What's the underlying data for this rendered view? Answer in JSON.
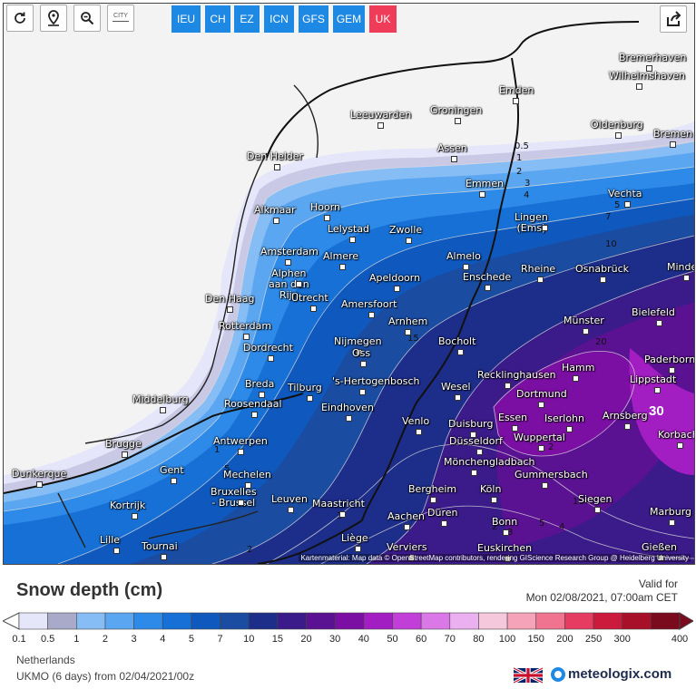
{
  "toolbar": {
    "city_label": "CITY",
    "models": [
      {
        "label": "IEU",
        "active": false
      },
      {
        "label": "CH",
        "active": false
      },
      {
        "label": "EZ",
        "active": false
      },
      {
        "label": "ICN",
        "active": false
      },
      {
        "label": "GFS",
        "active": false
      },
      {
        "label": "GEM",
        "active": false
      },
      {
        "label": "UK",
        "active": true
      }
    ],
    "colors": {
      "model_bg": "#1e88e5",
      "model_active_bg": "#ef3d59"
    }
  },
  "map": {
    "cities": [
      {
        "name": "Bremerhaven"
      },
      {
        "name": "Wilhelmshaven"
      },
      {
        "name": "Emden"
      },
      {
        "name": "Leeuwarden"
      },
      {
        "name": "Groningen"
      },
      {
        "name": "Oldenburg"
      },
      {
        "name": "Bremen"
      },
      {
        "name": "Den Helder"
      },
      {
        "name": "Assen"
      },
      {
        "name": "Emmen"
      },
      {
        "name": "Vechta"
      },
      {
        "name": "Alkmaar"
      },
      {
        "name": "Hoorn"
      },
      {
        "name": "Lelystad"
      },
      {
        "name": "Zwolle"
      },
      {
        "name": "Lingen\n(Ems)"
      },
      {
        "name": "Amsterdam"
      },
      {
        "name": "Almere"
      },
      {
        "name": "Almelo"
      },
      {
        "name": "Alphen\naan den\nRijn"
      },
      {
        "name": "Apeldoorn"
      },
      {
        "name": "Enschede"
      },
      {
        "name": "Rheine"
      },
      {
        "name": "Osnabrück"
      },
      {
        "name": "Minden"
      },
      {
        "name": "Den Haag"
      },
      {
        "name": "Utrecht"
      },
      {
        "name": "Amersfoort"
      },
      {
        "name": "Bielefeld"
      },
      {
        "name": "Rotterdam"
      },
      {
        "name": "Arnhem"
      },
      {
        "name": "Münster"
      },
      {
        "name": "Dordrecht"
      },
      {
        "name": "Nijmegen"
      },
      {
        "name": "Oss"
      },
      {
        "name": "Bocholt"
      },
      {
        "name": "Paderborn"
      },
      {
        "name": "Breda"
      },
      {
        "name": "Tilburg"
      },
      {
        "name": "'s-Hertogenbosch"
      },
      {
        "name": "Recklinghausen"
      },
      {
        "name": "Hamm"
      },
      {
        "name": "Lippstadt"
      },
      {
        "name": "Wesel"
      },
      {
        "name": "Roosendaal"
      },
      {
        "name": "Middelburg"
      },
      {
        "name": "Eindhoven"
      },
      {
        "name": "Dortmund"
      },
      {
        "name": "Arnsberg"
      },
      {
        "name": "Venlo"
      },
      {
        "name": "Essen"
      },
      {
        "name": "Iserlohn"
      },
      {
        "name": "Duisburg"
      },
      {
        "name": "Korbach"
      },
      {
        "name": "Brugge"
      },
      {
        "name": "Antwerpen"
      },
      {
        "name": "Düsseldorf"
      },
      {
        "name": "Wuppertal"
      },
      {
        "name": "Mönchengladbach"
      },
      {
        "name": "Dunkerque"
      },
      {
        "name": "Gent"
      },
      {
        "name": "Mechelen"
      },
      {
        "name": "Gummersbach"
      },
      {
        "name": "Bruxelles\n- Brussel"
      },
      {
        "name": "Leuven"
      },
      {
        "name": "Bergheim"
      },
      {
        "name": "Köln"
      },
      {
        "name": "Siegen"
      },
      {
        "name": "Kortrijk"
      },
      {
        "name": "Maastricht"
      },
      {
        "name": "Düren"
      },
      {
        "name": "Marburg"
      },
      {
        "name": "Aachen"
      },
      {
        "name": "Bonn"
      },
      {
        "name": "Lille"
      },
      {
        "name": "Tournai"
      },
      {
        "name": "Liège"
      },
      {
        "name": "Verviers"
      },
      {
        "name": "Euskirchen"
      },
      {
        "name": "Gießen"
      }
    ],
    "contour_labels": [
      "0.5",
      "1",
      "2",
      "3",
      "4",
      "5",
      "7",
      "10",
      "15",
      "20",
      "30",
      "2",
      "5",
      "1",
      "3",
      "2",
      "10",
      "4",
      "5",
      "3",
      "2"
    ],
    "attribution": "Kartenmaterial: Map data © OpenStreetMap contributors, rendering GIScience Research Group @ Heidelberg University"
  },
  "header": {
    "title": "Snow depth (cm)",
    "valid_label": "Valid for",
    "valid_time": "Mon 02/08/2021, 07:00am CET"
  },
  "legend": {
    "bins": [
      {
        "label": "0.1",
        "color": "#e6e6fa"
      },
      {
        "label": "0.5",
        "color": "#a9a9c9"
      },
      {
        "label": "1",
        "color": "#87bdf5"
      },
      {
        "label": "2",
        "color": "#5aa6f0"
      },
      {
        "label": "3",
        "color": "#2e8ae8"
      },
      {
        "label": "4",
        "color": "#1670d6"
      },
      {
        "label": "5",
        "color": "#0f58bd"
      },
      {
        "label": "7",
        "color": "#1a4ca2"
      },
      {
        "label": "10",
        "color": "#1d2d8a"
      },
      {
        "label": "15",
        "color": "#3b1b8a"
      },
      {
        "label": "20",
        "color": "#5a1293"
      },
      {
        "label": "30",
        "color": "#7b0fa3"
      },
      {
        "label": "40",
        "color": "#a21ec2"
      },
      {
        "label": "50",
        "color": "#c13fd8"
      },
      {
        "label": "60",
        "color": "#db78e8"
      },
      {
        "label": "70",
        "color": "#ebb0f0"
      },
      {
        "label": "80",
        "color": "#f5c8dc"
      },
      {
        "label": "100",
        "color": "#f5a3b8"
      },
      {
        "label": "150",
        "color": "#f07490"
      },
      {
        "label": "200",
        "color": "#e63c62"
      },
      {
        "label": "250",
        "color": "#cc1a3c"
      },
      {
        "label": "300",
        "color": "#a8102a"
      },
      {
        "label": "400",
        "color": "#7a0a1e"
      }
    ],
    "end_label": "400"
  },
  "footer": {
    "region": "Netherlands",
    "run": "UKMO (6 days) from 02/04/2021/00z",
    "brand": "meteologix.com"
  }
}
